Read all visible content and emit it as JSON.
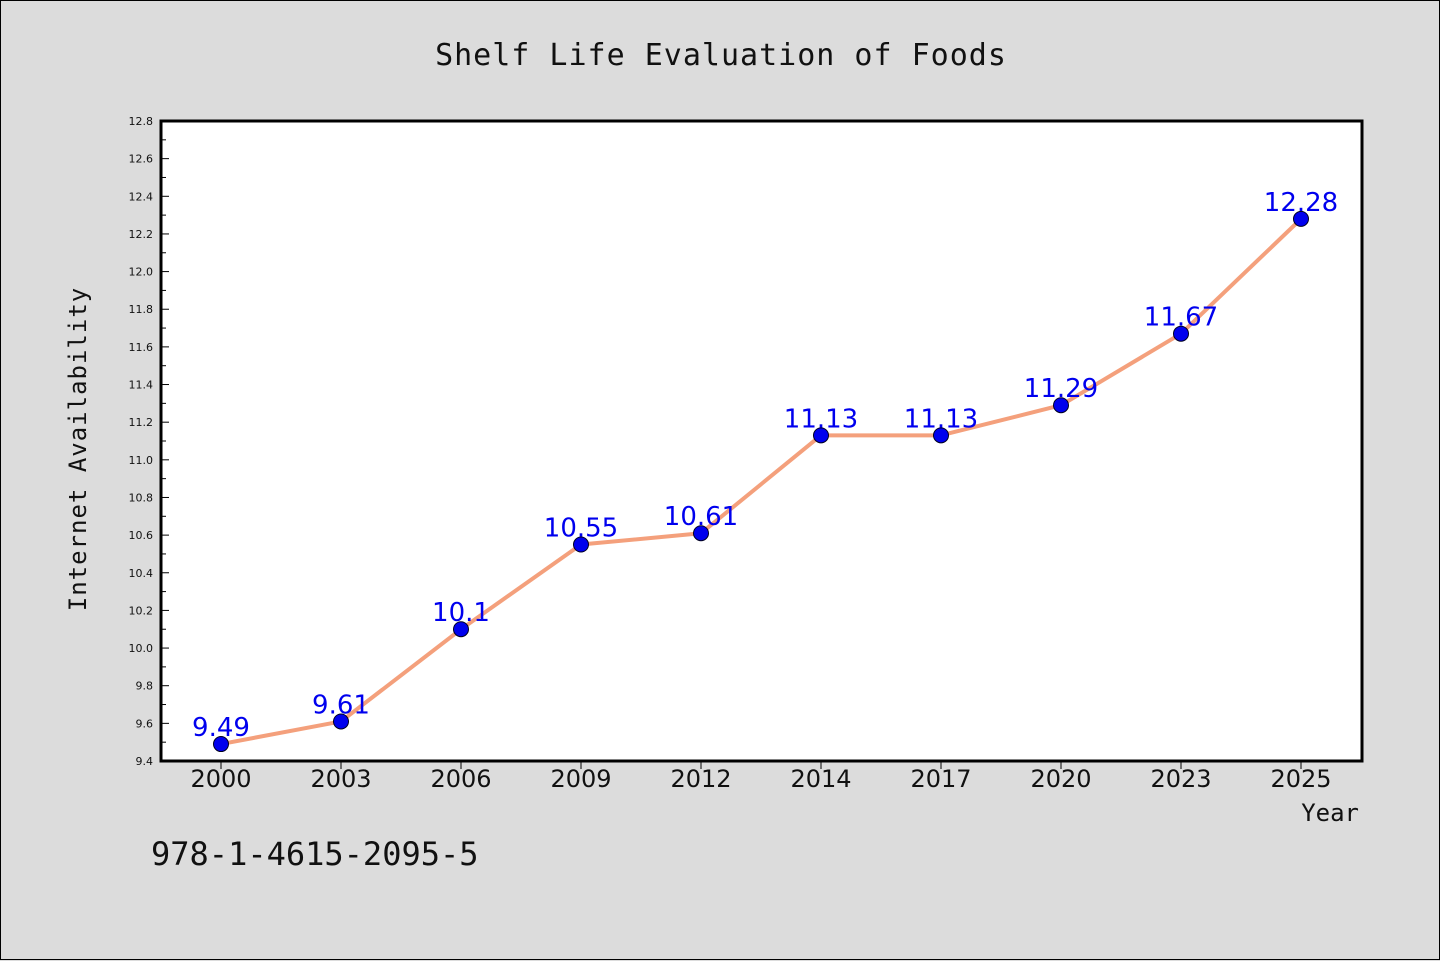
{
  "page_text": {
    "isbn": "978-1-4615-2095-5"
  },
  "colors": {
    "background": "#dcdcdc",
    "plot_background": "#ffffff",
    "line": "#f4a07c",
    "marker": "#0000ee",
    "data_label": "#0000ee"
  },
  "chart_data": {
    "type": "line",
    "title": "Shelf Life Evaluation of Foods",
    "xlabel": "Year",
    "ylabel": "Internet Availability",
    "categories": [
      "2000",
      "2003",
      "2006",
      "2009",
      "2012",
      "2014",
      "2017",
      "2020",
      "2023",
      "2025"
    ],
    "values": [
      9.49,
      9.61,
      10.1,
      10.55,
      10.61,
      11.13,
      11.13,
      11.29,
      11.67,
      12.28
    ],
    "data_labels": [
      "9.49",
      "9.61",
      "10.1",
      "10.55",
      "10.61",
      "11.13",
      "11.13",
      "11.29",
      "11.67",
      "12.28"
    ],
    "ylim": [
      9.4,
      12.8
    ],
    "yticks": [
      "9.4",
      "9.6",
      "9.8",
      "10.0",
      "10.2",
      "10.4",
      "10.6",
      "10.8",
      "11.0",
      "11.2",
      "11.4",
      "11.6",
      "11.8",
      "12.0",
      "12.2",
      "12.4",
      "12.6",
      "12.8"
    ],
    "grid": false,
    "legend": "none",
    "markers": "circle"
  }
}
